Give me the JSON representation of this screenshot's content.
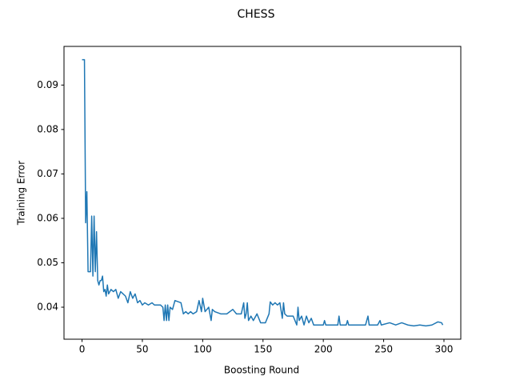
{
  "chart_data": {
    "type": "line",
    "title": "CHESS",
    "x_label": "Boosting Round",
    "y_label": "Training Error",
    "xlim": [
      -14.95,
      313.95
    ],
    "xticks": [
      0,
      50,
      100,
      150,
      200,
      250,
      300
    ],
    "ylim": [
      0.0328,
      0.0987
    ],
    "yticks": [
      0.04,
      0.05,
      0.06,
      0.07,
      0.08,
      0.09
    ],
    "series": [
      {
        "name": "Training Error",
        "color": "#1f77b4",
        "x": [
          0,
          1,
          2,
          3,
          4,
          5,
          6,
          7,
          8,
          9,
          10,
          11,
          12,
          13,
          14,
          15,
          16,
          17,
          18,
          19,
          20,
          21,
          22,
          24,
          26,
          28,
          30,
          32,
          34,
          36,
          38,
          40,
          42,
          44,
          46,
          48,
          50,
          52,
          55,
          58,
          60,
          65,
          67,
          68,
          69,
          70,
          71,
          72,
          73,
          75,
          77,
          82,
          84,
          86,
          88,
          90,
          92,
          95,
          97,
          99,
          100,
          102,
          105,
          107,
          108,
          110,
          115,
          120,
          125,
          128,
          132,
          134,
          135,
          136,
          137,
          138,
          140,
          142,
          145,
          148,
          150,
          152,
          155,
          156,
          158,
          160,
          162,
          164,
          166,
          167,
          168,
          170,
          175,
          178,
          179,
          180,
          182,
          184,
          186,
          188,
          190,
          192,
          195,
          200,
          201,
          202,
          210,
          212,
          213,
          214,
          219,
          220,
          221,
          235,
          237,
          238,
          245,
          247,
          248,
          255,
          260,
          265,
          270,
          275,
          280,
          285,
          290,
          295,
          298,
          299
        ],
        "values": [
          0.0957,
          0.0957,
          0.0957,
          0.059,
          0.066,
          0.048,
          0.048,
          0.048,
          0.0605,
          0.047,
          0.0605,
          0.048,
          0.057,
          0.046,
          0.045,
          0.046,
          0.046,
          0.047,
          0.0435,
          0.044,
          0.0425,
          0.045,
          0.043,
          0.044,
          0.0435,
          0.044,
          0.042,
          0.0435,
          0.043,
          0.0425,
          0.041,
          0.0435,
          0.042,
          0.043,
          0.041,
          0.0415,
          0.0405,
          0.041,
          0.0405,
          0.041,
          0.0405,
          0.0405,
          0.04,
          0.037,
          0.0405,
          0.037,
          0.0405,
          0.037,
          0.04,
          0.0395,
          0.0415,
          0.041,
          0.0385,
          0.039,
          0.0385,
          0.039,
          0.0385,
          0.039,
          0.0415,
          0.039,
          0.042,
          0.039,
          0.04,
          0.037,
          0.0395,
          0.039,
          0.0385,
          0.0385,
          0.0395,
          0.0385,
          0.0385,
          0.041,
          0.0375,
          0.0385,
          0.041,
          0.037,
          0.038,
          0.037,
          0.0385,
          0.0365,
          0.0365,
          0.0365,
          0.0385,
          0.0412,
          0.0405,
          0.041,
          0.0405,
          0.041,
          0.0375,
          0.041,
          0.0385,
          0.038,
          0.038,
          0.036,
          0.04,
          0.037,
          0.038,
          0.036,
          0.038,
          0.0365,
          0.0375,
          0.036,
          0.036,
          0.036,
          0.037,
          0.036,
          0.036,
          0.036,
          0.038,
          0.036,
          0.036,
          0.037,
          0.036,
          0.036,
          0.038,
          0.036,
          0.036,
          0.037,
          0.036,
          0.0365,
          0.036,
          0.0365,
          0.036,
          0.0358,
          0.036,
          0.0358,
          0.036,
          0.0367,
          0.0365,
          0.036
        ]
      }
    ]
  }
}
